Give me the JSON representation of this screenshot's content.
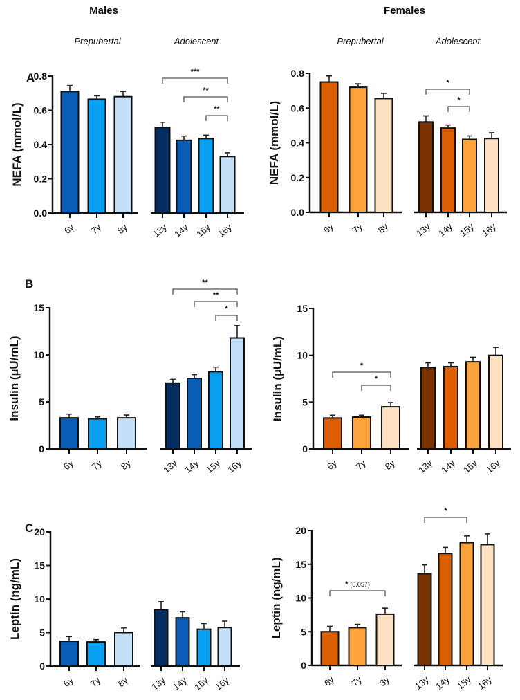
{
  "headers": {
    "males": "Males",
    "females": "Females",
    "prepubertal": "Prepubertal",
    "adolescent": "Adolescent"
  },
  "panel_letters": [
    "A",
    "B",
    "C"
  ],
  "chart_data": [
    {
      "type": "bar",
      "sex": "Males",
      "row": "A",
      "ylabel": "NEFA (mmol/L)",
      "ylim": [
        0,
        0.8
      ],
      "yticks": [
        "0.0",
        "0.2",
        "0.4",
        "0.6",
        "0.8"
      ],
      "prepubertal": {
        "categories": [
          "6y",
          "7y",
          "8y"
        ],
        "values": [
          0.71,
          0.665,
          0.68
        ],
        "errors": [
          0.035,
          0.02,
          0.03
        ],
        "colors": [
          "#0a5db5",
          "#0aa0f2",
          "#c3e0f8"
        ]
      },
      "adolescent": {
        "categories": [
          "13y",
          "14y",
          "15y",
          "16y"
        ],
        "values": [
          0.5,
          0.425,
          0.435,
          0.33
        ],
        "errors": [
          0.03,
          0.025,
          0.02,
          0.022
        ],
        "colors": [
          "#052c5e",
          "#0a5db5",
          "#0aa0f2",
          "#c3e0f8"
        ]
      },
      "significance": [
        {
          "group": "adolescent",
          "from": "13y",
          "to": "16y",
          "label": "***"
        },
        {
          "group": "adolescent",
          "from": "14y",
          "to": "16y",
          "label": "**"
        },
        {
          "group": "adolescent",
          "from": "15y",
          "to": "16y",
          "label": "**"
        }
      ]
    },
    {
      "type": "bar",
      "sex": "Females",
      "row": "A",
      "ylabel": "NEFA (mmol/L)",
      "ylim": [
        0,
        0.8
      ],
      "yticks": [
        "0.0",
        "0.2",
        "0.4",
        "0.6",
        "0.8"
      ],
      "prepubertal": {
        "categories": [
          "6y",
          "7y",
          "8y"
        ],
        "values": [
          0.75,
          0.72,
          0.655
        ],
        "errors": [
          0.035,
          0.02,
          0.03
        ],
        "colors": [
          "#db5f00",
          "#fca23a",
          "#fee0c2"
        ]
      },
      "adolescent": {
        "categories": [
          "13y",
          "14y",
          "15y",
          "16y"
        ],
        "values": [
          0.52,
          0.485,
          0.42,
          0.425
        ],
        "errors": [
          0.035,
          0.018,
          0.02,
          0.033
        ],
        "colors": [
          "#7a3300",
          "#db5f00",
          "#fca23a",
          "#fee0c2"
        ]
      },
      "significance": [
        {
          "group": "adolescent",
          "from": "13y",
          "to": "15y",
          "label": "*"
        },
        {
          "group": "adolescent",
          "from": "14y",
          "to": "15y",
          "label": "*"
        }
      ]
    },
    {
      "type": "bar",
      "sex": "Males",
      "row": "B",
      "ylabel": "Insulin (µU/mL)",
      "ylim": [
        0,
        15
      ],
      "yticks": [
        "0",
        "5",
        "10",
        "15"
      ],
      "prepubertal": {
        "categories": [
          "6y",
          "7y",
          "8y"
        ],
        "values": [
          3.3,
          3.2,
          3.3
        ],
        "errors": [
          0.4,
          0.2,
          0.3
        ],
        "colors": [
          "#0a5db5",
          "#0aa0f2",
          "#c3e0f8"
        ]
      },
      "adolescent": {
        "categories": [
          "13y",
          "14y",
          "15y",
          "16y"
        ],
        "values": [
          7.0,
          7.5,
          8.2,
          11.8
        ],
        "errors": [
          0.4,
          0.4,
          0.5,
          1.3
        ],
        "colors": [
          "#052c5e",
          "#0a5db5",
          "#0aa0f2",
          "#c3e0f8"
        ]
      },
      "significance": [
        {
          "group": "adolescent",
          "from": "13y",
          "to": "16y",
          "label": "**"
        },
        {
          "group": "adolescent",
          "from": "14y",
          "to": "16y",
          "label": "**"
        },
        {
          "group": "adolescent",
          "from": "15y",
          "to": "16y",
          "label": "*"
        }
      ]
    },
    {
      "type": "bar",
      "sex": "Females",
      "row": "B",
      "ylabel": "Insulin (µU/mL)",
      "ylim": [
        0,
        15
      ],
      "yticks": [
        "0",
        "5",
        "10",
        "15"
      ],
      "prepubertal": {
        "categories": [
          "6y",
          "7y",
          "8y"
        ],
        "values": [
          3.3,
          3.4,
          4.5
        ],
        "errors": [
          0.3,
          0.2,
          0.45
        ],
        "colors": [
          "#db5f00",
          "#fca23a",
          "#fee0c2"
        ]
      },
      "adolescent": {
        "categories": [
          "13y",
          "14y",
          "15y",
          "16y"
        ],
        "values": [
          8.7,
          8.8,
          9.3,
          10.0
        ],
        "errors": [
          0.5,
          0.4,
          0.5,
          0.85
        ],
        "colors": [
          "#7a3300",
          "#db5f00",
          "#fca23a",
          "#fee0c2"
        ]
      },
      "significance": [
        {
          "group": "prepubertal",
          "from": "6y",
          "to": "8y",
          "label": "*"
        },
        {
          "group": "prepubertal",
          "from": "7y",
          "to": "8y",
          "label": "*"
        }
      ]
    },
    {
      "type": "bar",
      "sex": "Males",
      "row": "C",
      "ylabel": "Leptin (ng/mL)",
      "ylim": [
        0,
        20
      ],
      "yticks": [
        "0",
        "5",
        "10",
        "15",
        "20"
      ],
      "prepubertal": {
        "categories": [
          "6y",
          "7y",
          "8y"
        ],
        "values": [
          3.7,
          3.6,
          5.0
        ],
        "errors": [
          0.7,
          0.35,
          0.7
        ],
        "colors": [
          "#0a5db5",
          "#0aa0f2",
          "#c3e0f8"
        ]
      },
      "adolescent": {
        "categories": [
          "13y",
          "14y",
          "15y",
          "16y"
        ],
        "values": [
          8.4,
          7.2,
          5.5,
          5.75
        ],
        "errors": [
          1.2,
          0.9,
          0.85,
          0.95
        ],
        "colors": [
          "#052c5e",
          "#0a5db5",
          "#0aa0f2",
          "#c3e0f8"
        ]
      },
      "significance": []
    },
    {
      "type": "bar",
      "sex": "Females",
      "row": "C",
      "ylabel": "Leptin (ng/mL)",
      "ylim": [
        0,
        20
      ],
      "yticks": [
        "0",
        "5",
        "10",
        "15",
        "20"
      ],
      "prepubertal": {
        "categories": [
          "6y",
          "7y",
          "8y"
        ],
        "values": [
          5.0,
          5.6,
          7.6
        ],
        "errors": [
          0.8,
          0.5,
          0.9
        ],
        "colors": [
          "#db5f00",
          "#fca23a",
          "#fee0c2"
        ]
      },
      "adolescent": {
        "categories": [
          "13y",
          "14y",
          "15y",
          "16y"
        ],
        "values": [
          13.6,
          16.6,
          18.2,
          17.9
        ],
        "errors": [
          1.3,
          0.9,
          1.0,
          1.6
        ],
        "colors": [
          "#7a3300",
          "#db5f00",
          "#fca23a",
          "#fee0c2"
        ]
      },
      "significance": [
        {
          "group": "prepubertal",
          "from": "6y",
          "to": "8y",
          "label": "*",
          "note": "(0.057)"
        },
        {
          "group": "adolescent",
          "from": "13y",
          "to": "15y",
          "label": "*"
        }
      ]
    }
  ]
}
